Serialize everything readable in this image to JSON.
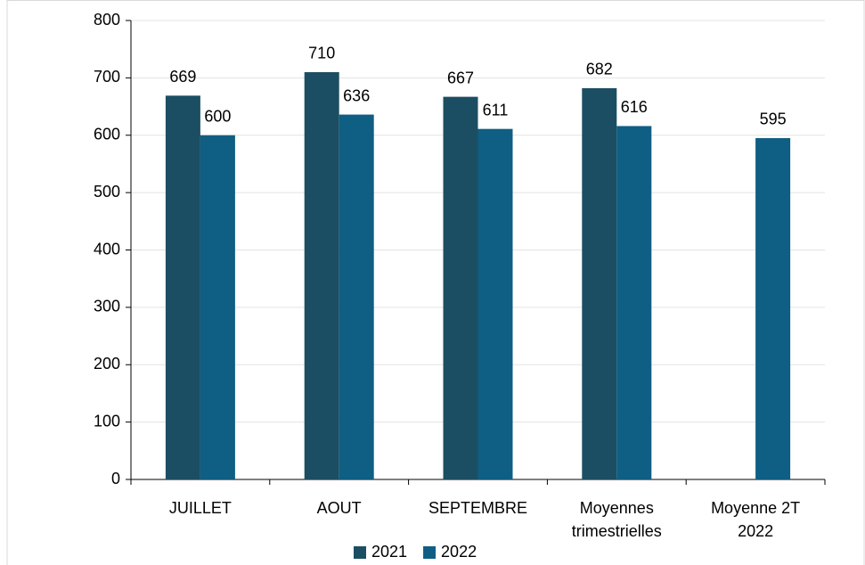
{
  "chart_data": {
    "type": "bar",
    "categories": [
      "JUILLET",
      "AOUT",
      "SEPTEMBRE",
      "Moyennes trimestrielles",
      "Moyenne 2T 2022"
    ],
    "series": [
      {
        "name": "2021",
        "color": "#1c4e63",
        "values": [
          669,
          710,
          667,
          682,
          null
        ]
      },
      {
        "name": "2022",
        "color": "#0f5e83",
        "values": [
          600,
          636,
          611,
          616,
          595
        ]
      }
    ],
    "ylim": [
      0,
      800
    ],
    "yticks": [
      0,
      100,
      200,
      300,
      400,
      500,
      600,
      700,
      800
    ],
    "grid": true,
    "legend": "bottom"
  }
}
